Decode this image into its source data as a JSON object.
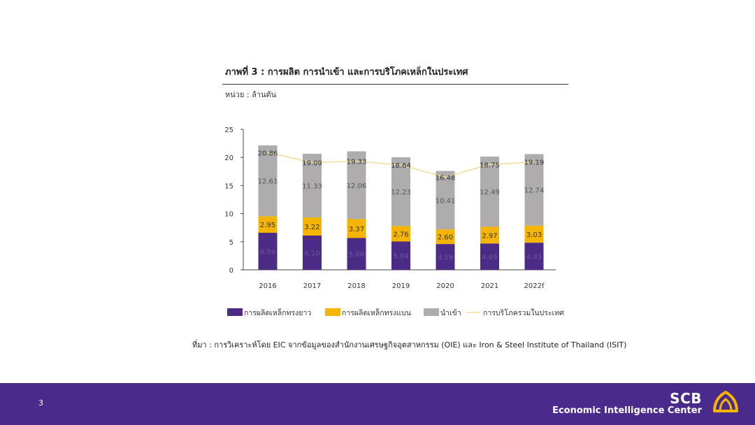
{
  "title": "ภาพที่ 3 : การผลิต การนำเข้า และการบริโภคเหล็กในประเทศ",
  "unit_label": "หน่วย : ล้านตัน",
  "source_text": "ที่มา : การวิเคราะห์โดย EIC จากข้อมูลของสำนักงานเศรษฐกิจอุตสาหกรรม (OIE) และ Iron & Steel Institute of Thailand (ISIT)",
  "footer": {
    "page_number": "3",
    "brand_name": "SCB",
    "brand_subtitle": "Economic Intelligence Center"
  },
  "colors": {
    "long_steel": "#4b2b85",
    "flat_steel": "#f5b400",
    "import": "#aeacac",
    "consumption_line": "#f3dc94",
    "footer_bg": "#4a2a8a",
    "logo": "#f5b400"
  },
  "icons": {
    "logo": "scb-logo-icon"
  },
  "chart_data": {
    "type": "bar",
    "stacked": true,
    "categories": [
      "2016",
      "2017",
      "2018",
      "2019",
      "2020",
      "2021",
      "2022f"
    ],
    "series": [
      {
        "name": "การผลิตเหล็กทรงยาว",
        "kind": "bar",
        "values": [
          6.59,
          6.1,
          5.66,
          5.04,
          4.59,
          4.69,
          4.83
        ]
      },
      {
        "name": "การผลิตเหล็กทรงแบน",
        "kind": "bar",
        "values": [
          2.95,
          3.22,
          3.37,
          2.76,
          2.6,
          2.97,
          3.03
        ]
      },
      {
        "name": "นำเข้า",
        "kind": "bar",
        "values": [
          12.61,
          11.33,
          12.06,
          12.23,
          10.41,
          12.49,
          12.74
        ]
      },
      {
        "name": "การบริโภครวมในประเทศ",
        "kind": "line",
        "values": [
          20.86,
          19.09,
          19.33,
          18.64,
          16.48,
          18.75,
          19.19
        ]
      }
    ],
    "value_labels": {
      "long_steel": [
        "6.59",
        "6.10",
        "5.66",
        "5.04",
        "4.59",
        "4.69",
        "4.83"
      ],
      "flat_steel": [
        "2.95",
        "3.22",
        "3.37",
        "2.76",
        "2.60",
        "2.97",
        "3.03"
      ],
      "import": [
        "12.61",
        "11.33",
        "12.06",
        "12.23",
        "10.41",
        "12.49",
        "12.74"
      ],
      "consumption": [
        "20.86",
        "19.09",
        "19.33",
        "18.64",
        "16.48",
        "18.75",
        "19.19"
      ]
    },
    "y_ticks": [
      "0",
      "5",
      "10",
      "15",
      "20",
      "25"
    ],
    "ylim": [
      0,
      25
    ],
    "grid": false,
    "legend_position": "bottom"
  }
}
